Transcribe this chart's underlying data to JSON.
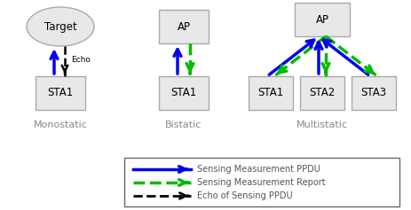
{
  "fig_width": 4.64,
  "fig_height": 2.37,
  "bg_color": "#ffffff",
  "box_facecolor": "#e8e8e8",
  "box_edgecolor": "#aaaaaa",
  "ellipse_facecolor": "#e8e8e8",
  "ellipse_edgecolor": "#aaaaaa",
  "blue": "#0000ee",
  "green": "#00bb00",
  "black": "#000000",
  "label_color": "#888888",
  "legend_edge": "#666666",
  "legend_text_color": "#555555",
  "legend_labels": [
    "Sensing Measurement PPDU",
    "Sensing Measurement Report",
    "Echo of Sensing PPDU"
  ],
  "monostatic_label": "Monostatic",
  "bistatic_label": "Bistatic",
  "multistatic_label": "Multistatic",
  "echo_label": "Echo"
}
